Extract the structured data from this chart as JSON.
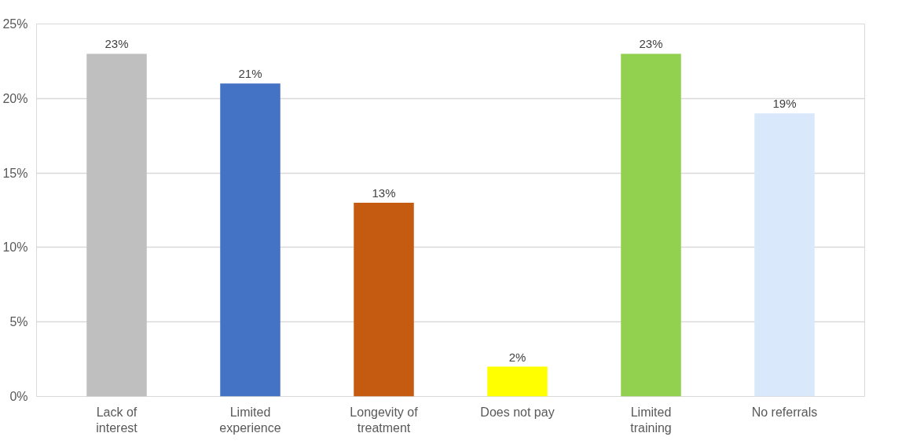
{
  "chart_data": {
    "type": "bar",
    "categories": [
      "Lack of interest",
      "Limited experience",
      "Longevity of treatment",
      "Does not pay",
      "Limited training",
      "No referrals"
    ],
    "values": [
      23,
      21,
      13,
      2,
      23,
      19
    ],
    "value_labels": [
      "23%",
      "21%",
      "13%",
      "2%",
      "23%",
      "19%"
    ],
    "colors": [
      "#bfbfbf",
      "#4472c4",
      "#c55a11",
      "#ffff00",
      "#92d050",
      "#dae8fc"
    ],
    "ylim": [
      0,
      25
    ],
    "yticks": [
      {
        "value": 0,
        "label": "0%"
      },
      {
        "value": 5,
        "label": "5%"
      },
      {
        "value": 10,
        "label": "10%"
      },
      {
        "value": 15,
        "label": "15%"
      },
      {
        "value": 20,
        "label": "20%"
      },
      {
        "value": 25,
        "label": "25%"
      }
    ],
    "grid": "y"
  }
}
